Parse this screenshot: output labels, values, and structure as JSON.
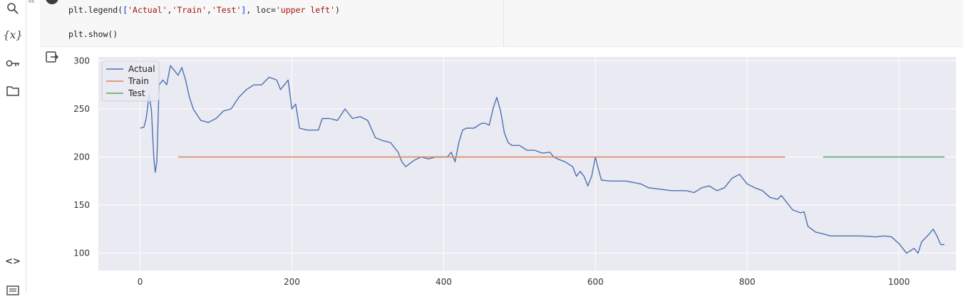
{
  "sidebar": {
    "icons": [
      {
        "name": "search-icon",
        "glyph": "⌕"
      },
      {
        "name": "variables-icon",
        "glyph": "{x}"
      },
      {
        "name": "key-icon",
        "glyph": "⚿"
      },
      {
        "name": "folder-icon",
        "glyph": "▭"
      },
      {
        "name": "code-snippets-icon",
        "glyph": "<>"
      },
      {
        "name": "terminal-icon",
        "glyph": "☰"
      }
    ]
  },
  "cell": {
    "exec_count": "0s",
    "code_lines": [
      {
        "pre": "plt.legend(",
        "lb": "[",
        "s1": "'Actual'",
        "c1": ",",
        "s2": "'Train'",
        "c2": ",",
        "s3": "'Test'",
        "rb": "]",
        "mid": ", loc=",
        "s4": "'upper left'",
        "post": ")"
      },
      {
        "text": "plt.show()"
      }
    ]
  },
  "chart_data": {
    "type": "line",
    "xlim": [
      -55,
      1075
    ],
    "ylim": [
      82,
      304
    ],
    "xticks": [
      "0",
      "200",
      "400",
      "600",
      "800",
      "1000"
    ],
    "yticks": [
      "100",
      "150",
      "200",
      "250",
      "300"
    ],
    "grid": true,
    "legend": {
      "placement": "upper left"
    },
    "series": [
      {
        "name": "Actual",
        "color": "#4c72b0",
        "points": [
          [
            0,
            230
          ],
          [
            5,
            231
          ],
          [
            8,
            240
          ],
          [
            12,
            265
          ],
          [
            15,
            248
          ],
          [
            18,
            200
          ],
          [
            20,
            184
          ],
          [
            22,
            195
          ],
          [
            25,
            275
          ],
          [
            30,
            280
          ],
          [
            35,
            275
          ],
          [
            40,
            295
          ],
          [
            45,
            290
          ],
          [
            50,
            285
          ],
          [
            55,
            293
          ],
          [
            60,
            280
          ],
          [
            65,
            262
          ],
          [
            70,
            250
          ],
          [
            80,
            238
          ],
          [
            90,
            236
          ],
          [
            100,
            240
          ],
          [
            110,
            248
          ],
          [
            120,
            250
          ],
          [
            130,
            262
          ],
          [
            140,
            270
          ],
          [
            150,
            275
          ],
          [
            160,
            275
          ],
          [
            170,
            283
          ],
          [
            180,
            280
          ],
          [
            185,
            270
          ],
          [
            195,
            280
          ],
          [
            200,
            250
          ],
          [
            205,
            255
          ],
          [
            210,
            230
          ],
          [
            220,
            228
          ],
          [
            235,
            228
          ],
          [
            240,
            240
          ],
          [
            250,
            240
          ],
          [
            260,
            238
          ],
          [
            270,
            250
          ],
          [
            280,
            240
          ],
          [
            290,
            242
          ],
          [
            300,
            238
          ],
          [
            310,
            220
          ],
          [
            320,
            217
          ],
          [
            330,
            215
          ],
          [
            340,
            205
          ],
          [
            345,
            195
          ],
          [
            350,
            190
          ],
          [
            360,
            196
          ],
          [
            370,
            200
          ],
          [
            380,
            198
          ],
          [
            390,
            200
          ],
          [
            400,
            200
          ],
          [
            405,
            200
          ],
          [
            410,
            205
          ],
          [
            415,
            195
          ],
          [
            420,
            215
          ],
          [
            425,
            228
          ],
          [
            430,
            230
          ],
          [
            440,
            230
          ],
          [
            450,
            235
          ],
          [
            455,
            235
          ],
          [
            460,
            233
          ],
          [
            465,
            250
          ],
          [
            470,
            262
          ],
          [
            475,
            248
          ],
          [
            480,
            225
          ],
          [
            485,
            215
          ],
          [
            490,
            212
          ],
          [
            500,
            212
          ],
          [
            510,
            207
          ],
          [
            520,
            207
          ],
          [
            530,
            204
          ],
          [
            540,
            205
          ],
          [
            545,
            200
          ],
          [
            550,
            198
          ],
          [
            560,
            195
          ],
          [
            570,
            190
          ],
          [
            575,
            180
          ],
          [
            580,
            185
          ],
          [
            585,
            180
          ],
          [
            590,
            170
          ],
          [
            595,
            180
          ],
          [
            600,
            200
          ],
          [
            603,
            190
          ],
          [
            608,
            176
          ],
          [
            620,
            175
          ],
          [
            640,
            175
          ],
          [
            660,
            172
          ],
          [
            670,
            168
          ],
          [
            680,
            167
          ],
          [
            700,
            165
          ],
          [
            720,
            165
          ],
          [
            730,
            163
          ],
          [
            740,
            168
          ],
          [
            750,
            170
          ],
          [
            760,
            165
          ],
          [
            770,
            168
          ],
          [
            780,
            178
          ],
          [
            790,
            182
          ],
          [
            800,
            172
          ],
          [
            810,
            168
          ],
          [
            820,
            165
          ],
          [
            830,
            158
          ],
          [
            840,
            156
          ],
          [
            845,
            160
          ],
          [
            850,
            155
          ],
          [
            860,
            145
          ],
          [
            870,
            142
          ],
          [
            875,
            143
          ],
          [
            880,
            128
          ],
          [
            890,
            122
          ],
          [
            900,
            120
          ],
          [
            910,
            118
          ],
          [
            930,
            118
          ],
          [
            950,
            118
          ],
          [
            970,
            117
          ],
          [
            980,
            118
          ],
          [
            990,
            117
          ],
          [
            1000,
            110
          ],
          [
            1010,
            100
          ],
          [
            1020,
            105
          ],
          [
            1025,
            100
          ],
          [
            1030,
            112
          ],
          [
            1040,
            120
          ],
          [
            1045,
            125
          ],
          [
            1050,
            118
          ],
          [
            1055,
            109
          ],
          [
            1060,
            109
          ]
        ]
      },
      {
        "name": "Train",
        "color": "#dd8452",
        "points": [
          [
            50,
            200
          ],
          [
            850,
            200
          ]
        ]
      },
      {
        "name": "Test",
        "color": "#55a868",
        "points": [
          [
            900,
            200
          ],
          [
            1060,
            200
          ]
        ]
      }
    ]
  }
}
